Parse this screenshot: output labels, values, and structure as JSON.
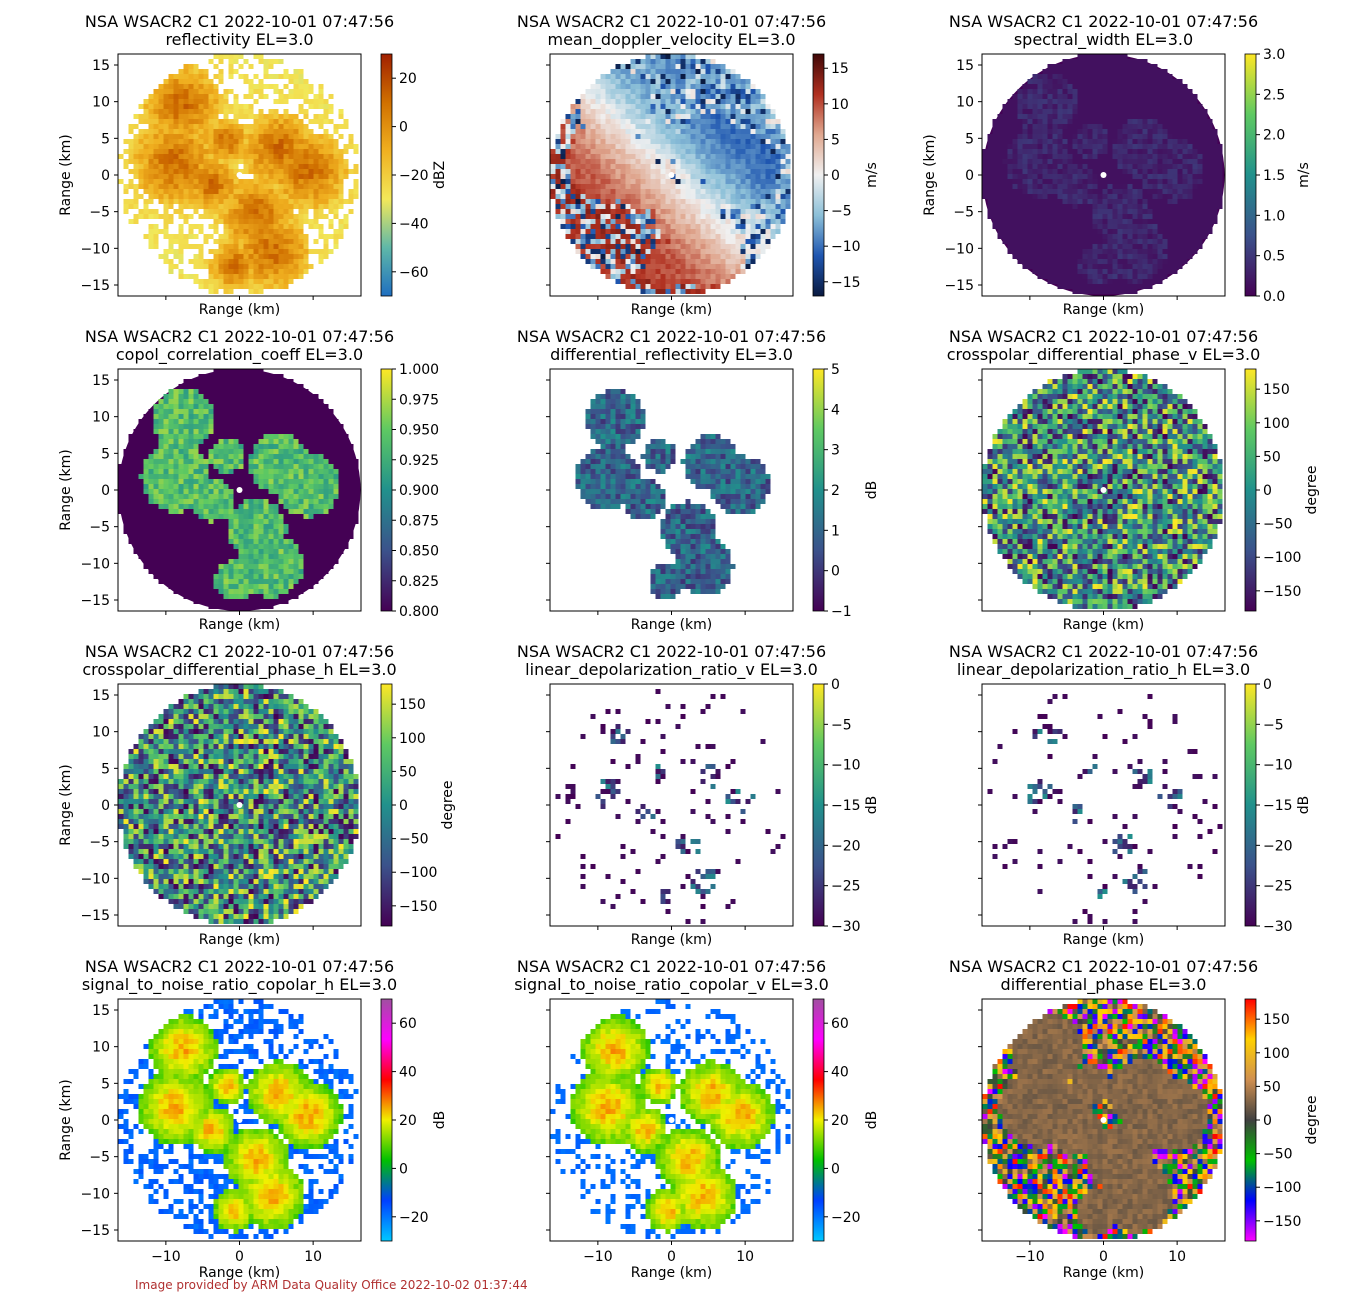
{
  "figure_credit": "Image provided by ARM Data Quality Office 2022-10-02 01:37:44",
  "chart_data": [
    {
      "type": "heatmap",
      "title": "NSA WSACR2 C1 2022-10-01 07:47:56",
      "subtitle": "reflectivity  EL=3.0",
      "xlabel": "Range (km)",
      "ylabel": "Range (km)",
      "xlim": [
        -16.5,
        16.5
      ],
      "ylim": [
        -16.5,
        16.5
      ],
      "xticks": [],
      "yticks": [
        -15,
        -10,
        -5,
        0,
        5,
        10,
        15
      ],
      "cbar_label": "dBZ",
      "cbar_range": [
        -70,
        30
      ],
      "cbar_ticks": [
        -60,
        -40,
        -20,
        0,
        20
      ],
      "colormap": [
        "#1f6fc0",
        "#5fb8a8",
        "#f2e85a",
        "#f0b020",
        "#d07000",
        "#a02000"
      ],
      "background": "#ffffff",
      "pattern": "cells",
      "fill": 0.55
    },
    {
      "type": "heatmap",
      "title": "NSA WSACR2 C1 2022-10-01 07:47:56",
      "subtitle": "mean_doppler_velocity  EL=3.0",
      "xlabel": "Range (km)",
      "ylabel": "",
      "xlim": [
        -16.5,
        16.5
      ],
      "ylim": [
        -16.5,
        16.5
      ],
      "xticks": [],
      "yticks": [],
      "cbar_label": "m/s",
      "cbar_range": [
        -17,
        17
      ],
      "cbar_ticks": [
        -15,
        -10,
        -5,
        0,
        5,
        10,
        15
      ],
      "colormap": [
        "#0a1a40",
        "#1f56b0",
        "#8cc0d8",
        "#f0f0f0",
        "#e0a890",
        "#b03020",
        "#400808"
      ],
      "background": "#ffffff",
      "pattern": "velocity",
      "fill": 1.0
    },
    {
      "type": "heatmap",
      "title": "NSA WSACR2 C1 2022-10-01 07:47:56",
      "subtitle": "spectral_width  EL=3.0",
      "xlabel": "Range (km)",
      "ylabel": "Range (km)",
      "xlim": [
        -16.5,
        16.5
      ],
      "ylim": [
        -16.5,
        16.5
      ],
      "xticks": [],
      "yticks": [
        -15,
        -10,
        -5,
        0,
        5,
        10,
        15
      ],
      "cbar_label": "m/s",
      "cbar_range": [
        0,
        3
      ],
      "cbar_ticks": [
        "0.0",
        "0.5",
        "1.0",
        "1.5",
        "2.0",
        "2.5",
        "3.0"
      ],
      "colormap": [
        "#440154",
        "#3b528b",
        "#21918c",
        "#5ec962",
        "#fde725"
      ],
      "background": "#440154",
      "pattern": "uniform",
      "fill": 1.0
    },
    {
      "type": "heatmap",
      "title": "NSA WSACR2 C1 2022-10-01 07:47:56",
      "subtitle": "copol_correlation_coeff  EL=3.0",
      "xlabel": "Range (km)",
      "ylabel": "Range (km)",
      "xlim": [
        -16.5,
        16.5
      ],
      "ylim": [
        -16.5,
        16.5
      ],
      "xticks": [],
      "yticks": [
        -15,
        -10,
        -5,
        0,
        5,
        10,
        15
      ],
      "cbar_label": "",
      "cbar_range": [
        0.8,
        1.0
      ],
      "cbar_ticks": [
        "0.800",
        "0.825",
        "0.850",
        "0.875",
        "0.900",
        "0.925",
        "0.950",
        "0.975",
        "1.000"
      ],
      "colormap": [
        "#440154",
        "#3b528b",
        "#21918c",
        "#5ec962",
        "#fde725"
      ],
      "background": "#440154",
      "pattern": "cellsHigh",
      "fill": 1.0
    },
    {
      "type": "heatmap",
      "title": "NSA WSACR2 C1 2022-10-01 07:47:56",
      "subtitle": "differential_reflectivity  EL=3.0",
      "xlabel": "Range (km)",
      "ylabel": "Range (km)",
      "xlim": [
        -16.5,
        16.5
      ],
      "ylim": [
        -16.5,
        16.5
      ],
      "xticks": [],
      "yticks": [],
      "cbar_label": "dB",
      "cbar_range": [
        -1,
        5
      ],
      "cbar_ticks": [
        -1,
        0,
        1,
        2,
        3,
        4,
        5
      ],
      "colormap": [
        "#440154",
        "#3b528b",
        "#21918c",
        "#5ec962",
        "#fde725"
      ],
      "background": "#ffffff",
      "pattern": "cellsOnly",
      "fill": 0.0
    },
    {
      "type": "heatmap",
      "title": "NSA WSACR2 C1 2022-10-01 07:47:56",
      "subtitle": "crosspolar_differential_phase_v  EL=3.0",
      "xlabel": "Range (km)",
      "ylabel": "Range (km)",
      "xlim": [
        -16.5,
        16.5
      ],
      "ylim": [
        -16.5,
        16.5
      ],
      "xticks": [],
      "yticks": [],
      "cbar_label": "degree",
      "cbar_range": [
        -180,
        180
      ],
      "cbar_ticks": [
        -150,
        -100,
        -50,
        0,
        50,
        100,
        150
      ],
      "colormap": [
        "#440154",
        "#3b528b",
        "#21918c",
        "#5ec962",
        "#fde725"
      ],
      "background": "#ffffff",
      "pattern": "noise",
      "fill": 1.0
    },
    {
      "type": "heatmap",
      "title": "NSA WSACR2 C1 2022-10-01 07:47:56",
      "subtitle": "crosspolar_differential_phase_h  EL=3.0",
      "xlabel": "Range (km)",
      "ylabel": "Range (km)",
      "xlim": [
        -16.5,
        16.5
      ],
      "ylim": [
        -16.5,
        16.5
      ],
      "xticks": [],
      "yticks": [
        -15,
        -10,
        -5,
        0,
        5,
        10,
        15
      ],
      "cbar_label": "degree",
      "cbar_range": [
        -180,
        180
      ],
      "cbar_ticks": [
        -150,
        -100,
        -50,
        0,
        50,
        100,
        150
      ],
      "colormap": [
        "#440154",
        "#3b528b",
        "#21918c",
        "#5ec962",
        "#fde725"
      ],
      "background": "#ffffff",
      "pattern": "noise",
      "fill": 1.0
    },
    {
      "type": "heatmap",
      "title": "NSA WSACR2 C1 2022-10-01 07:47:56",
      "subtitle": "linear_depolarization_ratio_v  EL=3.0",
      "xlabel": "Range (km)",
      "ylabel": "Range (km)",
      "xlim": [
        -16.5,
        16.5
      ],
      "ylim": [
        -16.5,
        16.5
      ],
      "xticks": [],
      "yticks": [],
      "cbar_label": "dB",
      "cbar_range": [
        -30,
        0
      ],
      "cbar_ticks": [
        -30,
        -25,
        -20,
        -15,
        -10,
        -5,
        0
      ],
      "colormap": [
        "#440154",
        "#3b528b",
        "#21918c",
        "#5ec962",
        "#fde725"
      ],
      "background": "#ffffff",
      "pattern": "sparse",
      "fill": 0.08
    },
    {
      "type": "heatmap",
      "title": "NSA WSACR2 C1 2022-10-01 07:47:56",
      "subtitle": "linear_depolarization_ratio_h  EL=3.0",
      "xlabel": "Range (km)",
      "ylabel": "Range (km)",
      "xlim": [
        -16.5,
        16.5
      ],
      "ylim": [
        -16.5,
        16.5
      ],
      "xticks": [],
      "yticks": [],
      "cbar_label": "dB",
      "cbar_range": [
        -30,
        0
      ],
      "cbar_ticks": [
        -30,
        -25,
        -20,
        -15,
        -10,
        -5,
        0
      ],
      "colormap": [
        "#440154",
        "#3b528b",
        "#21918c",
        "#5ec962",
        "#fde725"
      ],
      "background": "#ffffff",
      "pattern": "sparse",
      "fill": 0.08
    },
    {
      "type": "heatmap",
      "title": "NSA WSACR2 C1 2022-10-01 07:47:56",
      "subtitle": "signal_to_noise_ratio_copolar_h  EL=3.0",
      "xlabel": "Range (km)",
      "ylabel": "Range (km)",
      "xlim": [
        -16.5,
        16.5
      ],
      "ylim": [
        -16.5,
        16.5
      ],
      "xticks": [
        -10,
        0,
        10
      ],
      "yticks": [
        -15,
        -10,
        -5,
        0,
        5,
        10,
        15
      ],
      "cbar_label": "dB",
      "cbar_range": [
        -30,
        70
      ],
      "cbar_ticks": [
        -20,
        0,
        20,
        40,
        60
      ],
      "colormap": [
        "#00c8ff",
        "#0040ff",
        "#00c000",
        "#f0f000",
        "#ff0000",
        "#ff00ff",
        "#a050a0"
      ],
      "background": "#ffffff",
      "pattern": "snr",
      "fill": 0.45
    },
    {
      "type": "heatmap",
      "title": "NSA WSACR2 C1 2022-10-01 07:47:56",
      "subtitle": "signal_to_noise_ratio_copolar_v  EL=3.0",
      "xlabel": "Range (km)",
      "ylabel": "Range (km)",
      "xlim": [
        -16.5,
        16.5
      ],
      "ylim": [
        -16.5,
        16.5
      ],
      "xticks": [
        -10,
        0,
        10
      ],
      "yticks": [],
      "cbar_label": "dB",
      "cbar_range": [
        -30,
        70
      ],
      "cbar_ticks": [
        -20,
        0,
        20,
        40,
        60
      ],
      "colormap": [
        "#00c8ff",
        "#0040ff",
        "#00c000",
        "#f0f000",
        "#ff0000",
        "#ff00ff",
        "#a050a0"
      ],
      "background": "#ffffff",
      "pattern": "snr",
      "fill": 0.3
    },
    {
      "type": "heatmap",
      "title": "NSA WSACR2 C1 2022-10-01 07:47:56",
      "subtitle": "differential_phase  EL=3.0",
      "xlabel": "Range (km)",
      "ylabel": "Range (km)",
      "xlim": [
        -16.5,
        16.5
      ],
      "ylim": [
        -16.5,
        16.5
      ],
      "xticks": [
        -10,
        0,
        10
      ],
      "yticks": [],
      "cbar_label": "degree",
      "cbar_range": [
        -180,
        180
      ],
      "cbar_ticks": [
        -150,
        -100,
        -50,
        0,
        50,
        100,
        150
      ],
      "colormap": [
        "#ff00ff",
        "#0000ff",
        "#00c000",
        "#404040",
        "#d09050",
        "#ffd000",
        "#ff0000"
      ],
      "background": "#ffffff",
      "pattern": "phase",
      "fill": 1.0
    }
  ]
}
